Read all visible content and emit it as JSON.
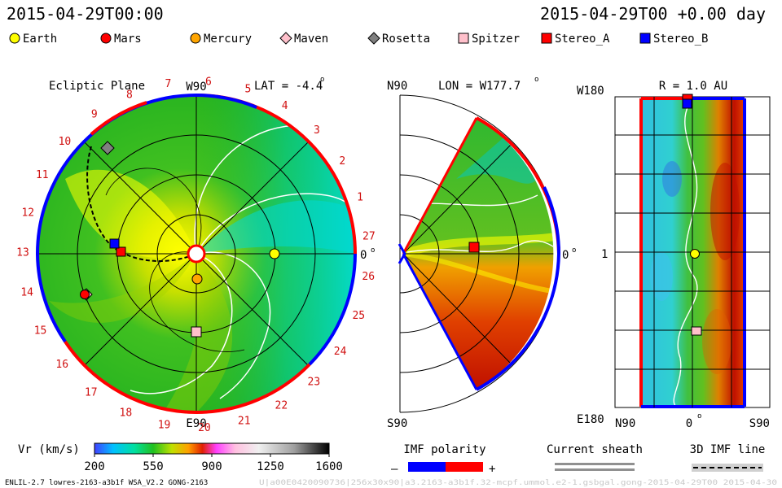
{
  "header": {
    "datetime_left": "2015-04-29T00:00",
    "datetime_right": "2015-04-29T00 +0.00 day"
  },
  "legend": [
    {
      "name": "Earth",
      "color": "#ffff00",
      "shape": "circle"
    },
    {
      "name": "Mars",
      "color": "#ff0000",
      "shape": "circle"
    },
    {
      "name": "Mercury",
      "color": "#ffa500",
      "shape": "circle"
    },
    {
      "name": "Maven",
      "color": "#ffc0cb",
      "shape": "diamond"
    },
    {
      "name": "Rosetta",
      "color": "#808080",
      "shape": "diamond"
    },
    {
      "name": "Spitzer",
      "color": "#ffc0cb",
      "shape": "square"
    },
    {
      "name": "Stereo_A",
      "color": "#ff0000",
      "shape": "square"
    },
    {
      "name": "Stereo_B",
      "color": "#0000ff",
      "shape": "square"
    }
  ],
  "ecliptic": {
    "title": "Ecliptic Plane",
    "top_label": "W90",
    "bottom_label": "E90",
    "right_label": "0",
    "lat_label": "LAT = -4.4",
    "carrington": [
      "1",
      "2",
      "3",
      "4",
      "5",
      "6",
      "7",
      "8",
      "9",
      "10",
      "11",
      "12",
      "13",
      "14",
      "15",
      "16",
      "17",
      "18",
      "19",
      "20",
      "21",
      "22",
      "23",
      "24",
      "25",
      "26",
      "27"
    ]
  },
  "meridional": {
    "top_label": "N90",
    "bottom_label": "S90",
    "right_label": "0",
    "lon_label": "LON = W177.7"
  },
  "radial": {
    "title": "R = 1.0 AU",
    "top_label": "W180",
    "bottom_label": "E180",
    "mid_label": "1",
    "x_labels": [
      "N90",
      "0",
      "S90"
    ]
  },
  "colorbar": {
    "label": "Vr (km/s)",
    "ticks": [
      "200",
      "550",
      "900",
      "1250",
      "1600"
    ]
  },
  "imf": {
    "polarity_label": "IMF polarity",
    "minus": "–",
    "plus": "+",
    "sheath_label": "Current sheath",
    "line_label": "3D IMF line"
  },
  "footer": {
    "left": "ENLIL-2.7 lowres-2163-a3b1f WSA_V2.2 GONG-2163",
    "right": "U|a00E0420090736|256x30x90|a3.2163-a3b1f.32-mcpf.ummol.e2-1.gsbgal.gong-2015-04-29T00   2015-04-30"
  },
  "colors": {
    "positive_polarity": "#ff0000",
    "negative_polarity": "#0000ff",
    "slow_wind": "#00b000",
    "fast_wind": "#ffff00"
  }
}
